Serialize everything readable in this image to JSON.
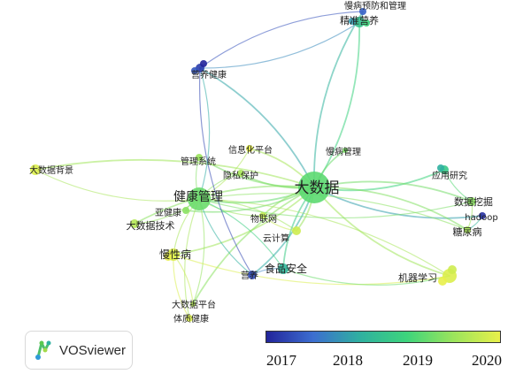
{
  "nodes": [
    {
      "id": "big_data",
      "label": "大数据",
      "year": 2019.0,
      "weight": 10
    },
    {
      "id": "health_mgmt",
      "label": "健康管理",
      "year": 2019.1,
      "weight": 8
    },
    {
      "id": "chronic",
      "label": "慢性病",
      "year": 2019.9,
      "weight": 4
    },
    {
      "id": "bigdata_tech",
      "label": "大数据技术",
      "year": 2019.6,
      "weight": 3
    },
    {
      "id": "sub_health",
      "label": "亚健康",
      "year": 2019.3,
      "weight": 2
    },
    {
      "id": "bigdata_bg",
      "label": "大数据背景",
      "year": 2019.9,
      "weight": 3
    },
    {
      "id": "mgmt_sys",
      "label": "管理系统",
      "year": 2019.4,
      "weight": 2
    },
    {
      "id": "info_platform",
      "label": "信息化平台",
      "year": 2020.0,
      "weight": 2
    },
    {
      "id": "privacy",
      "label": "隐私保护",
      "year": 2019.5,
      "weight": 2
    },
    {
      "id": "iot",
      "label": "物联网",
      "year": 2019.7,
      "weight": 2
    },
    {
      "id": "cloud",
      "label": "云计算",
      "year": 2019.8,
      "weight": 2
    },
    {
      "id": "nutrition",
      "label": "营养",
      "year": 2017.3,
      "weight": 2
    },
    {
      "id": "food_safety",
      "label": "食品安全",
      "year": 2018.3,
      "weight": 3
    },
    {
      "id": "nutri_health",
      "label": "营养健康",
      "year": 2017.2,
      "weight": 3
    },
    {
      "id": "precision_nutri",
      "label": "精准营养",
      "year": 2018.5,
      "weight": 3
    },
    {
      "id": "chronic_prev",
      "label": "慢病预防和管理",
      "year": 2017.5,
      "weight": 2
    },
    {
      "id": "chronic_mgmt",
      "label": "慢病管理",
      "year": 2019.2,
      "weight": 1
    },
    {
      "id": "app_research",
      "label": "应用研究",
      "year": 2018.6,
      "weight": 2
    },
    {
      "id": "data_mining",
      "label": "数据挖掘",
      "year": 2019.3,
      "weight": 2
    },
    {
      "id": "hadoop",
      "label": "hadoop",
      "year": 2017.1,
      "weight": 2
    },
    {
      "id": "diabetes",
      "label": "糖尿病",
      "year": 2019.5,
      "weight": 2
    },
    {
      "id": "ml",
      "label": "机器学习",
      "year": 2019.9,
      "weight": 3
    },
    {
      "id": "bigdata_platform",
      "label": "大数据平台",
      "year": 2019.6,
      "weight": 1
    },
    {
      "id": "physique",
      "label": "体质健康",
      "year": 2019.9,
      "weight": 2
    }
  ],
  "edges": [
    [
      "big_data",
      "health_mgmt"
    ],
    [
      "big_data",
      "precision_nutri"
    ],
    [
      "big_data",
      "chronic_prev"
    ],
    [
      "big_data",
      "nutri_health"
    ],
    [
      "big_data",
      "chronic_mgmt"
    ],
    [
      "big_data",
      "info_platform"
    ],
    [
      "big_data",
      "privacy"
    ],
    [
      "big_data",
      "iot"
    ],
    [
      "big_data",
      "cloud"
    ],
    [
      "big_data",
      "food_safety"
    ],
    [
      "big_data",
      "nutrition"
    ],
    [
      "big_data",
      "app_research"
    ],
    [
      "big_data",
      "data_mining"
    ],
    [
      "big_data",
      "hadoop"
    ],
    [
      "big_data",
      "diabetes"
    ],
    [
      "big_data",
      "ml"
    ],
    [
      "big_data",
      "chronic"
    ],
    [
      "big_data",
      "bigdata_tech"
    ],
    [
      "big_data",
      "mgmt_sys"
    ],
    [
      "big_data",
      "bigdata_bg"
    ],
    [
      "big_data",
      "sub_health"
    ],
    [
      "big_data",
      "bigdata_platform"
    ],
    [
      "health_mgmt",
      "bigdata_bg"
    ],
    [
      "health_mgmt",
      "chronic"
    ],
    [
      "health_mgmt",
      "bigdata_tech"
    ],
    [
      "health_mgmt",
      "sub_health"
    ],
    [
      "health_mgmt",
      "mgmt_sys"
    ],
    [
      "health_mgmt",
      "info_platform"
    ],
    [
      "health_mgmt",
      "privacy"
    ],
    [
      "health_mgmt",
      "iot"
    ],
    [
      "health_mgmt",
      "cloud"
    ],
    [
      "health_mgmt",
      "nutrition"
    ],
    [
      "health_mgmt",
      "food_safety"
    ],
    [
      "health_mgmt",
      "nutri_health"
    ],
    [
      "health_mgmt",
      "ml"
    ],
    [
      "health_mgmt",
      "physique"
    ],
    [
      "health_mgmt",
      "bigdata_platform"
    ],
    [
      "health_mgmt",
      "data_mining"
    ],
    [
      "health_mgmt",
      "diabetes"
    ],
    [
      "chronic",
      "ml"
    ],
    [
      "chronic",
      "bigdata_platform"
    ],
    [
      "chronic",
      "physique"
    ],
    [
      "nutrition",
      "food_safety"
    ],
    [
      "nutri_health",
      "precision_nutri"
    ],
    [
      "nutri_health",
      "chronic_prev"
    ],
    [
      "iot",
      "cloud"
    ],
    [
      "data_mining",
      "diabetes"
    ],
    [
      "app_research",
      "data_mining"
    ],
    [
      "hadoop",
      "diabetes"
    ],
    [
      "precision_nutri",
      "chronic_prev"
    ],
    [
      "nutrition",
      "nutri_health"
    ],
    [
      "food_safety",
      "ml"
    ]
  ],
  "legend": {
    "scale_labels": [
      "2017",
      "2018",
      "2019",
      "2020"
    ],
    "min_year": 2017,
    "max_year": 2020,
    "colors": [
      "#22249a",
      "#3c6ed0",
      "#2fb0a0",
      "#3dd47c",
      "#9be45c",
      "#e8f04a"
    ]
  },
  "brand": {
    "name": "VOSviewer"
  }
}
